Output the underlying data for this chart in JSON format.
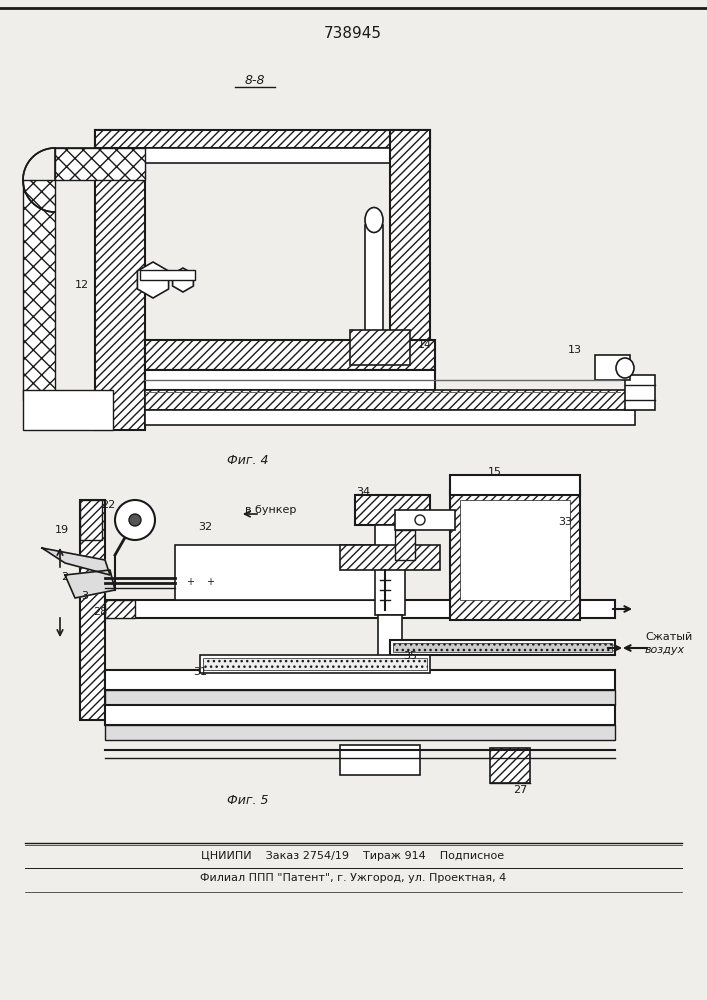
{
  "title": "738945",
  "fig4_label": "Фиг. 4",
  "fig5_label": "Фиг. 5",
  "view_label": "8-8",
  "footer_line1": "ЦНИИПИ    Заказ 2754/19    Тираж 914    Подписное",
  "footer_line2": "Филиал ППП \"Патент\", г. Ужгород, ул. Проектная, 4",
  "bg_color": "#f0eeea",
  "line_color": "#1a1a1a",
  "figsize": [
    7.07,
    10.0
  ],
  "dpi": 100
}
